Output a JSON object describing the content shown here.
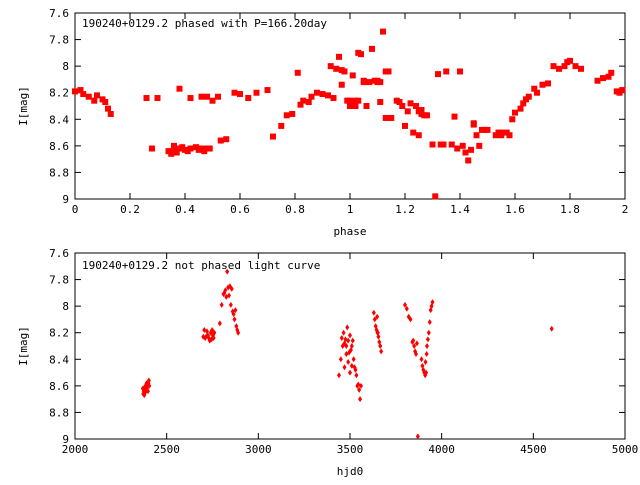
{
  "chart_data": [
    {
      "type": "scatter",
      "title": "190240+0129.2 phased with P=166.20day",
      "xlabel": "phase",
      "ylabel": "I[mag]",
      "xlim": [
        0,
        2
      ],
      "ylim": [
        7.6,
        9.0
      ],
      "y_inverted": true,
      "marker": "filled-square",
      "color": "#ff0000",
      "xticks": [
        "0",
        "0.2",
        "0.4",
        "0.6",
        "0.8",
        "1",
        "1.2",
        "1.4",
        "1.6",
        "1.8",
        "2"
      ],
      "yticks": [
        "7.6",
        "7.8",
        "8",
        "8.2",
        "8.4",
        "8.6",
        "8.8",
        "9"
      ],
      "points": [
        [
          0.0,
          8.19
        ],
        [
          0.02,
          8.18
        ],
        [
          0.03,
          8.21
        ],
        [
          0.05,
          8.23
        ],
        [
          0.07,
          8.26
        ],
        [
          0.08,
          8.22
        ],
        [
          0.1,
          8.25
        ],
        [
          0.11,
          8.27
        ],
        [
          0.12,
          8.32
        ],
        [
          0.13,
          8.36
        ],
        [
          0.26,
          8.24
        ],
        [
          0.28,
          8.62
        ],
        [
          0.3,
          8.24
        ],
        [
          0.34,
          8.64
        ],
        [
          0.35,
          8.66
        ],
        [
          0.36,
          8.63
        ],
        [
          0.37,
          8.65
        ],
        [
          0.38,
          8.62
        ],
        [
          0.39,
          8.61
        ],
        [
          0.4,
          8.63
        ],
        [
          0.38,
          8.17
        ],
        [
          0.36,
          8.6
        ],
        [
          0.42,
          8.24
        ],
        [
          0.44,
          8.61
        ],
        [
          0.45,
          8.63
        ],
        [
          0.46,
          8.62
        ],
        [
          0.47,
          8.64
        ],
        [
          0.46,
          8.23
        ],
        [
          0.48,
          8.62
        ],
        [
          0.48,
          8.23
        ],
        [
          0.5,
          8.26
        ],
        [
          0.52,
          8.23
        ],
        [
          0.53,
          8.56
        ],
        [
          0.55,
          8.55
        ],
        [
          0.58,
          8.2
        ],
        [
          0.6,
          8.21
        ],
        [
          0.63,
          8.24
        ],
        [
          0.66,
          8.2
        ],
        [
          0.7,
          8.18
        ],
        [
          0.72,
          8.53
        ],
        [
          0.75,
          8.45
        ],
        [
          0.77,
          8.37
        ],
        [
          0.79,
          8.36
        ],
        [
          0.81,
          8.05
        ],
        [
          0.82,
          8.29
        ],
        [
          0.83,
          8.26
        ],
        [
          0.85,
          8.27
        ],
        [
          0.86,
          8.23
        ],
        [
          0.88,
          8.2
        ],
        [
          0.9,
          8.21
        ],
        [
          0.92,
          8.22
        ],
        [
          0.93,
          8.0
        ],
        [
          0.94,
          8.24
        ],
        [
          0.95,
          8.02
        ],
        [
          0.96,
          7.93
        ],
        [
          0.97,
          8.14
        ],
        [
          0.98,
          8.04
        ],
        [
          0.99,
          8.26
        ],
        [
          1.0,
          8.3
        ],
        [
          1.01,
          8.07
        ],
        [
          1.02,
          8.26
        ],
        [
          1.03,
          7.9
        ],
        [
          1.04,
          7.91
        ],
        [
          1.05,
          8.12
        ],
        [
          1.06,
          8.3
        ],
        [
          1.07,
          8.12
        ],
        [
          1.08,
          7.87
        ],
        [
          1.09,
          8.11
        ],
        [
          1.1,
          8.11
        ],
        [
          1.11,
          8.27
        ],
        [
          1.12,
          7.74
        ],
        [
          1.13,
          8.39
        ],
        [
          1.15,
          8.39
        ],
        [
          1.17,
          8.26
        ],
        [
          1.18,
          8.27
        ],
        [
          1.19,
          8.3
        ],
        [
          1.2,
          8.45
        ],
        [
          1.21,
          8.34
        ],
        [
          1.22,
          8.28
        ],
        [
          1.23,
          8.5
        ],
        [
          1.24,
          8.3
        ],
        [
          1.25,
          8.52
        ],
        [
          1.26,
          8.33
        ],
        [
          1.27,
          8.37
        ],
        [
          1.28,
          8.37
        ],
        [
          1.3,
          8.59
        ],
        [
          1.32,
          8.06
        ],
        [
          1.33,
          8.59
        ],
        [
          1.34,
          8.59
        ],
        [
          1.35,
          8.04
        ],
        [
          1.37,
          8.59
        ],
        [
          1.39,
          8.62
        ],
        [
          1.4,
          8.04
        ],
        [
          1.41,
          8.6
        ],
        [
          1.42,
          8.65
        ],
        [
          1.43,
          8.71
        ],
        [
          1.44,
          8.63
        ],
        [
          1.45,
          8.44
        ],
        [
          1.46,
          8.52
        ],
        [
          1.47,
          8.6
        ],
        [
          1.48,
          8.48
        ],
        [
          1.49,
          8.48
        ],
        [
          1.5,
          8.48
        ],
        [
          1.53,
          8.52
        ],
        [
          1.54,
          8.5
        ],
        [
          1.55,
          8.52
        ],
        [
          1.57,
          8.5
        ],
        [
          1.58,
          8.52
        ],
        [
          1.59,
          8.4
        ],
        [
          1.6,
          8.35
        ],
        [
          1.62,
          8.32
        ],
        [
          1.63,
          8.28
        ],
        [
          1.64,
          8.25
        ],
        [
          1.65,
          8.23
        ],
        [
          1.67,
          8.17
        ],
        [
          1.68,
          8.2
        ],
        [
          1.7,
          8.14
        ],
        [
          1.72,
          8.13
        ],
        [
          1.74,
          8.0
        ],
        [
          1.76,
          8.02
        ],
        [
          1.78,
          8.0
        ],
        [
          1.79,
          7.97
        ],
        [
          1.8,
          7.96
        ],
        [
          1.82,
          8.0
        ],
        [
          1.84,
          8.02
        ],
        [
          1.9,
          8.11
        ],
        [
          1.92,
          8.09
        ],
        [
          1.94,
          8.08
        ],
        [
          1.95,
          8.05
        ],
        [
          1.97,
          8.19
        ],
        [
          1.98,
          8.2
        ],
        [
          1.99,
          8.18
        ],
        [
          0.41,
          8.64
        ],
        [
          0.35,
          8.64
        ],
        [
          0.49,
          8.62
        ],
        [
          1.13,
          8.04
        ],
        [
          1.14,
          8.04
        ],
        [
          0.97,
          8.03
        ],
        [
          1.05,
          8.11
        ],
        [
          1.1,
          8.12
        ],
        [
          1.11,
          8.12
        ],
        [
          1.25,
          8.34
        ],
        [
          1.31,
          8.98
        ],
        [
          1.02,
          8.3
        ],
        [
          1.03,
          8.26
        ],
        [
          1.0,
          8.26
        ],
        [
          1.26,
          8.36
        ],
        [
          1.38,
          8.38
        ],
        [
          1.55,
          8.5
        ],
        [
          1.45,
          8.43
        ],
        [
          0.42,
          8.62
        ]
      ]
    },
    {
      "type": "scatter",
      "title": "190240+0129.2 not phased light curve",
      "xlabel": "hjd0",
      "ylabel": "I[mag]",
      "xlim": [
        2000,
        5000
      ],
      "ylim": [
        7.6,
        9.0
      ],
      "y_inverted": true,
      "marker": "small-diamond",
      "color": "#ff0000",
      "xticks": [
        "2000",
        "2500",
        "3000",
        "3500",
        "4000",
        "4500",
        "5000"
      ],
      "yticks": [
        "7.6",
        "7.8",
        "8",
        "8.2",
        "8.4",
        "8.6",
        "8.8",
        "9"
      ],
      "points": [
        [
          2370,
          8.62
        ],
        [
          2372,
          8.66
        ],
        [
          2375,
          8.64
        ],
        [
          2378,
          8.67
        ],
        [
          2380,
          8.61
        ],
        [
          2382,
          8.63
        ],
        [
          2385,
          8.6
        ],
        [
          2388,
          8.63
        ],
        [
          2390,
          8.58
        ],
        [
          2392,
          8.62
        ],
        [
          2395,
          8.59
        ],
        [
          2398,
          8.64
        ],
        [
          2400,
          8.58
        ],
        [
          2403,
          8.56
        ],
        [
          2405,
          8.6
        ],
        [
          2378,
          8.63
        ],
        [
          2383,
          8.65
        ],
        [
          2700,
          8.23
        ],
        [
          2705,
          8.18
        ],
        [
          2710,
          8.24
        ],
        [
          2715,
          8.23
        ],
        [
          2720,
          8.19
        ],
        [
          2725,
          8.22
        ],
        [
          2730,
          8.24
        ],
        [
          2735,
          8.26
        ],
        [
          2740,
          8.2
        ],
        [
          2745,
          8.25
        ],
        [
          2748,
          8.18
        ],
        [
          2752,
          8.22
        ],
        [
          2756,
          8.24
        ],
        [
          2760,
          8.2
        ],
        [
          2790,
          8.13
        ],
        [
          2800,
          7.99
        ],
        [
          2810,
          7.91
        ],
        [
          2815,
          7.9
        ],
        [
          2820,
          7.88
        ],
        [
          2825,
          7.93
        ],
        [
          2830,
          7.74
        ],
        [
          2835,
          7.86
        ],
        [
          2840,
          7.92
        ],
        [
          2845,
          7.85
        ],
        [
          2850,
          7.99
        ],
        [
          2855,
          7.87
        ],
        [
          2860,
          8.04
        ],
        [
          2865,
          8.06
        ],
        [
          2870,
          8.1
        ],
        [
          2875,
          8.03
        ],
        [
          2880,
          8.15
        ],
        [
          2885,
          8.18
        ],
        [
          2890,
          8.2
        ],
        [
          3440,
          8.52
        ],
        [
          3450,
          8.4
        ],
        [
          3455,
          8.24
        ],
        [
          3460,
          8.3
        ],
        [
          3465,
          8.2
        ],
        [
          3470,
          8.28
        ],
        [
          3475,
          8.25
        ],
        [
          3480,
          8.3
        ],
        [
          3485,
          8.16
        ],
        [
          3490,
          8.26
        ],
        [
          3495,
          8.35
        ],
        [
          3500,
          8.22
        ],
        [
          3505,
          8.33
        ],
        [
          3510,
          8.3
        ],
        [
          3515,
          8.26
        ],
        [
          3520,
          8.4
        ],
        [
          3525,
          8.46
        ],
        [
          3530,
          8.48
        ],
        [
          3535,
          8.52
        ],
        [
          3540,
          8.6
        ],
        [
          3545,
          8.59
        ],
        [
          3550,
          8.63
        ],
        [
          3555,
          8.7
        ],
        [
          3560,
          8.6
        ],
        [
          3470,
          8.46
        ],
        [
          3480,
          8.36
        ],
        [
          3490,
          8.42
        ],
        [
          3500,
          8.5
        ],
        [
          3510,
          8.45
        ],
        [
          3630,
          8.05
        ],
        [
          3635,
          8.1
        ],
        [
          3640,
          8.15
        ],
        [
          3645,
          8.18
        ],
        [
          3650,
          8.2
        ],
        [
          3655,
          8.23
        ],
        [
          3660,
          8.27
        ],
        [
          3665,
          8.3
        ],
        [
          3670,
          8.34
        ],
        [
          3648,
          8.08
        ],
        [
          3652,
          8.2
        ],
        [
          3800,
          7.99
        ],
        [
          3810,
          8.02
        ],
        [
          3820,
          8.08
        ],
        [
          3830,
          8.1
        ],
        [
          3840,
          8.27
        ],
        [
          3845,
          8.26
        ],
        [
          3850,
          8.3
        ],
        [
          3855,
          8.34
        ],
        [
          3860,
          8.36
        ],
        [
          3865,
          8.28
        ],
        [
          3870,
          8.98
        ],
        [
          3890,
          8.4
        ],
        [
          3895,
          8.45
        ],
        [
          3900,
          8.48
        ],
        [
          3905,
          8.5
        ],
        [
          3910,
          8.52
        ],
        [
          3915,
          8.5
        ],
        [
          3920,
          8.3
        ],
        [
          3925,
          8.25
        ],
        [
          3930,
          8.2
        ],
        [
          3935,
          8.12
        ],
        [
          3940,
          8.03
        ],
        [
          3945,
          8.0
        ],
        [
          3950,
          7.97
        ],
        [
          3912,
          8.42
        ],
        [
          3918,
          8.36
        ],
        [
          4600,
          8.17
        ]
      ]
    }
  ]
}
